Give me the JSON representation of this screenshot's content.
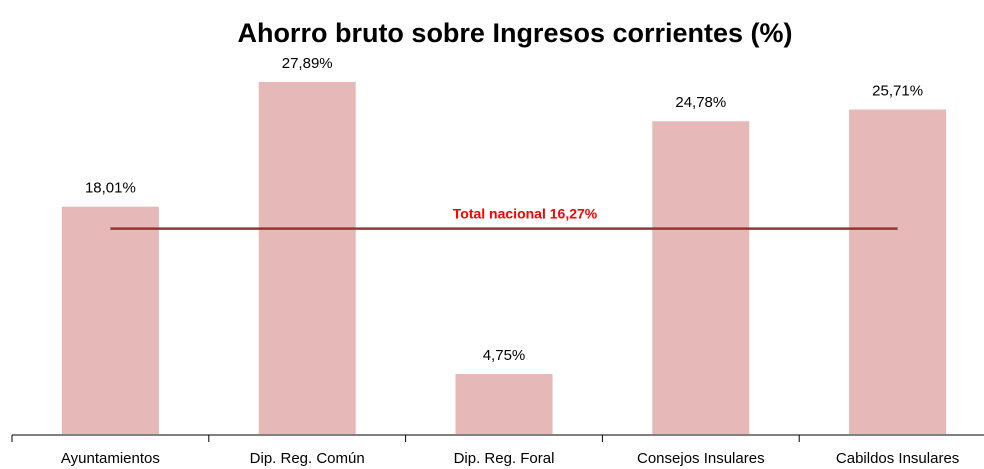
{
  "chart_data": {
    "type": "bar",
    "title": "Ahorro bruto sobre Ingresos corrientes (%)",
    "categories": [
      "Ayuntamientos",
      "Dip. Reg. Común",
      "Dip. Reg. Foral",
      "Consejos Insulares",
      "Cabildos Insulares"
    ],
    "values": [
      18.01,
      27.89,
      4.75,
      24.78,
      25.71
    ],
    "value_labels": [
      "18,01%",
      "27,89%",
      "4,75%",
      "24,78%",
      "25,71%"
    ],
    "color": "#e6b8b7",
    "reference_line": {
      "value": 16.27,
      "label": "Total nacional 16,27%",
      "color": "#943634",
      "label_color": "#ff0000"
    }
  }
}
